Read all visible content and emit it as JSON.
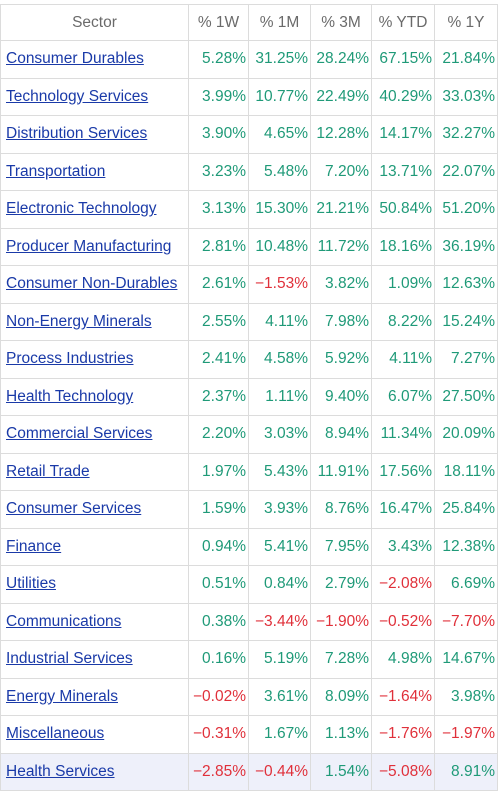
{
  "table": {
    "headers": [
      "Sector",
      "% 1W",
      "% 1M",
      "% 3M",
      "% YTD",
      "% 1Y"
    ],
    "rows": [
      {
        "sector": "Consumer Durables",
        "w1": "5.28%",
        "m1": "31.25%",
        "m3": "28.24%",
        "ytd": "67.15%",
        "y1": "21.84%"
      },
      {
        "sector": "Technology Services",
        "w1": "3.99%",
        "m1": "10.77%",
        "m3": "22.49%",
        "ytd": "40.29%",
        "y1": "33.03%"
      },
      {
        "sector": "Distribution Services",
        "w1": "3.90%",
        "m1": "4.65%",
        "m3": "12.28%",
        "ytd": "14.17%",
        "y1": "32.27%"
      },
      {
        "sector": "Transportation",
        "w1": "3.23%",
        "m1": "5.48%",
        "m3": "7.20%",
        "ytd": "13.71%",
        "y1": "22.07%"
      },
      {
        "sector": "Electronic Technology",
        "w1": "3.13%",
        "m1": "15.30%",
        "m3": "21.21%",
        "ytd": "50.84%",
        "y1": "51.20%"
      },
      {
        "sector": "Producer Manufacturing",
        "w1": "2.81%",
        "m1": "10.48%",
        "m3": "11.72%",
        "ytd": "18.16%",
        "y1": "36.19%"
      },
      {
        "sector": "Consumer Non-Durables",
        "w1": "2.61%",
        "m1": "−1.53%",
        "m3": "3.82%",
        "ytd": "1.09%",
        "y1": "12.63%"
      },
      {
        "sector": "Non-Energy Minerals",
        "w1": "2.55%",
        "m1": "4.11%",
        "m3": "7.98%",
        "ytd": "8.22%",
        "y1": "15.24%"
      },
      {
        "sector": "Process Industries",
        "w1": "2.41%",
        "m1": "4.58%",
        "m3": "5.92%",
        "ytd": "4.11%",
        "y1": "7.27%"
      },
      {
        "sector": "Health Technology",
        "w1": "2.37%",
        "m1": "1.11%",
        "m3": "9.40%",
        "ytd": "6.07%",
        "y1": "27.50%"
      },
      {
        "sector": "Commercial Services",
        "w1": "2.20%",
        "m1": "3.03%",
        "m3": "8.94%",
        "ytd": "11.34%",
        "y1": "20.09%"
      },
      {
        "sector": "Retail Trade",
        "w1": "1.97%",
        "m1": "5.43%",
        "m3": "11.91%",
        "ytd": "17.56%",
        "y1": "18.11%"
      },
      {
        "sector": "Consumer Services",
        "w1": "1.59%",
        "m1": "3.93%",
        "m3": "8.76%",
        "ytd": "16.47%",
        "y1": "25.84%"
      },
      {
        "sector": "Finance",
        "w1": "0.94%",
        "m1": "5.41%",
        "m3": "7.95%",
        "ytd": "3.43%",
        "y1": "12.38%"
      },
      {
        "sector": "Utilities",
        "w1": "0.51%",
        "m1": "0.84%",
        "m3": "2.79%",
        "ytd": "−2.08%",
        "y1": "6.69%"
      },
      {
        "sector": "Communications",
        "w1": "0.38%",
        "m1": "−3.44%",
        "m3": "−1.90%",
        "ytd": "−0.52%",
        "y1": "−7.70%"
      },
      {
        "sector": "Industrial Services",
        "w1": "0.16%",
        "m1": "5.19%",
        "m3": "7.28%",
        "ytd": "4.98%",
        "y1": "14.67%"
      },
      {
        "sector": "Energy Minerals",
        "w1": "−0.02%",
        "m1": "3.61%",
        "m3": "8.09%",
        "ytd": "−1.64%",
        "y1": "3.98%"
      },
      {
        "sector": "Miscellaneous",
        "w1": "−0.31%",
        "m1": "1.67%",
        "m3": "1.13%",
        "ytd": "−1.76%",
        "y1": "−1.97%"
      },
      {
        "sector": "Health Services",
        "w1": "−2.85%",
        "m1": "−0.44%",
        "m3": "1.54%",
        "ytd": "−5.08%",
        "y1": "8.91%"
      }
    ],
    "highlighted_row_index": 19
  },
  "colors": {
    "positive": "#1f9a78",
    "negative": "#e0303a",
    "link": "#1a3aa8",
    "header_text": "#6a6a6a",
    "border": "#dcdcdc",
    "highlight_bg": "#eef0fa"
  }
}
